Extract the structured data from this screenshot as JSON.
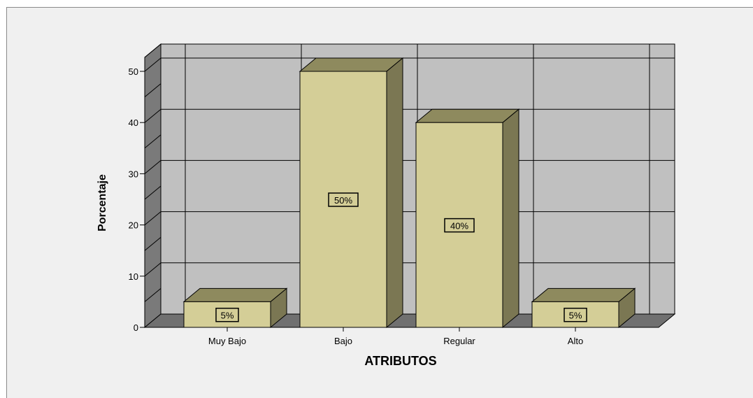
{
  "chart_data": {
    "type": "bar",
    "categories": [
      "Muy Bajo",
      "Bajo",
      "Regular",
      "Alto"
    ],
    "values": [
      5,
      50,
      40,
      5
    ],
    "data_labels": [
      "5%",
      "50%",
      "40%",
      "5%"
    ],
    "title": "",
    "xlabel": "ATRIBUTOS",
    "ylabel": "Porcentaje",
    "ylim": [
      0,
      50
    ],
    "yticks": [
      0,
      10,
      20,
      30,
      40,
      50
    ],
    "grid": true,
    "three_d": true,
    "colors": {
      "bar_front": "#d4ce97",
      "bar_top": "#8e8a5e",
      "bar_side": "#7b7753",
      "wall": "#c0c0c0",
      "side_wall": "#7a7a7a",
      "floor": "#707070",
      "background": "#f0f0f0"
    }
  }
}
